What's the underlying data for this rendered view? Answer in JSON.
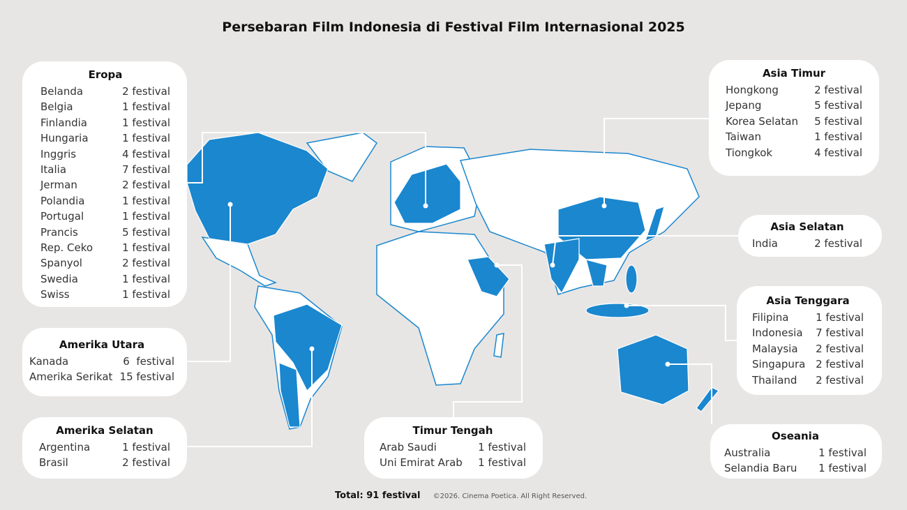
{
  "title": "Persebaran Film Indonesia di Festival Film Internasional 2025",
  "colors": {
    "background": "#e8e6e4",
    "highlight": "#1a87cf",
    "land": "#ffffff",
    "card": "#ffffff"
  },
  "regions": {
    "eropa": {
      "name": "Eropa",
      "rows": [
        [
          "Belanda",
          "2 festival"
        ],
        [
          "Belgia",
          "1 festival"
        ],
        [
          "Finlandia",
          "1 festival"
        ],
        [
          "Hungaria",
          "1 festival"
        ],
        [
          "Inggris",
          "4 festival"
        ],
        [
          "Italia",
          "7 festival"
        ],
        [
          "Jerman",
          "2 festival"
        ],
        [
          "Polandia",
          "1 festival"
        ],
        [
          "Portugal",
          "1 festival"
        ],
        [
          "Prancis",
          "5 festival"
        ],
        [
          "Rep. Ceko",
          "1 festival"
        ],
        [
          "Spanyol",
          "2 festival"
        ],
        [
          "Swedia",
          "1 festival"
        ],
        [
          "Swiss",
          "1 festival"
        ]
      ]
    },
    "amerika_utara": {
      "name": "Amerika Utara",
      "rows": [
        [
          "Kanada",
          "6  festival"
        ],
        [
          "Amerika Serikat",
          "15 festival"
        ]
      ]
    },
    "amerika_selatan": {
      "name": "Amerika Selatan",
      "rows": [
        [
          "Argentina",
          "1 festival"
        ],
        [
          "Brasil",
          "2 festival"
        ]
      ]
    },
    "timur_tengah": {
      "name": "Timur Tengah",
      "rows": [
        [
          "Arab Saudi",
          "1 festival"
        ],
        [
          "Uni Emirat Arab",
          "1 festival"
        ]
      ]
    },
    "asia_timur": {
      "name": "Asia Timur",
      "rows": [
        [
          "Hongkong",
          "2 festival"
        ],
        [
          "Jepang",
          "5 festival"
        ],
        [
          "Korea Selatan",
          "5 festival"
        ],
        [
          "Taiwan",
          "1 festival"
        ],
        [
          "Tiongkok",
          "4 festival"
        ]
      ]
    },
    "asia_selatan": {
      "name": "Asia Selatan",
      "rows": [
        [
          "India",
          "2 festival"
        ]
      ]
    },
    "asia_tenggara": {
      "name": "Asia Tenggara",
      "rows": [
        [
          "Filipina",
          "1 festival"
        ],
        [
          "Indonesia",
          "7 festival"
        ],
        [
          "Malaysia",
          "2 festival"
        ],
        [
          "Singapura",
          "2 festival"
        ],
        [
          "Thailand",
          "2 festival"
        ]
      ]
    },
    "oseania": {
      "name": "Oseania",
      "rows": [
        [
          "Australia",
          "1 festival"
        ],
        [
          "Selandia Baru",
          "1 festival"
        ]
      ]
    }
  },
  "footer": {
    "total": "Total: 91 festival",
    "copyright": "©2026. Cinema Poetica. All Right Reserved."
  }
}
